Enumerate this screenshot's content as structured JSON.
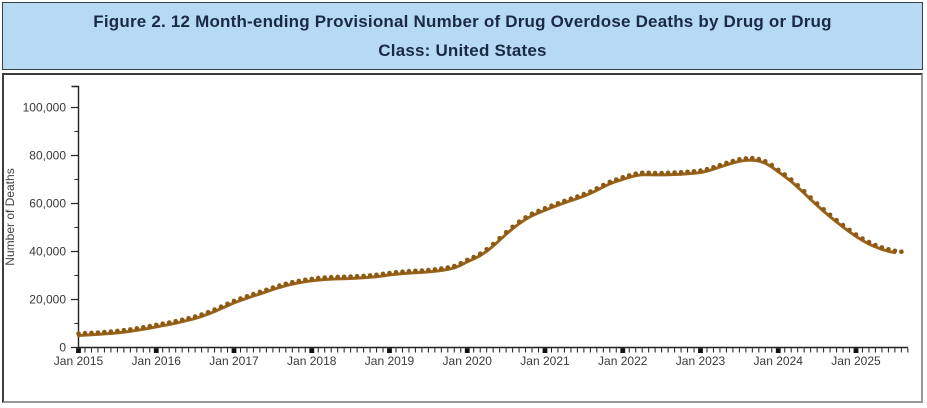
{
  "figure": {
    "title": "Figure 2. 12 Month-ending Provisional Number of Drug Overdose Deaths by Drug or Drug Class: United States"
  },
  "colors": {
    "title_bar_bg": "#b7daf4",
    "title_text": "#1b2a44",
    "series_line": "#99631a",
    "series_dot": "#8d5913",
    "axis": "#222222",
    "tick_label": "#3a3a3a"
  },
  "chart_data": {
    "type": "line",
    "title": "Figure 2. 12 Month-ending Provisional Number of Drug Overdose Deaths by Drug or Drug Class: United States",
    "xlabel": "",
    "ylabel": "Number of Deaths",
    "x_start": "Jan 2015",
    "x_end": "Aug 2025",
    "frequency": "monthly",
    "x_tick_labels": [
      "Jan 2015",
      "Jan 2016",
      "Jan 2017",
      "Jan 2018",
      "Jan 2019",
      "Jan 2020",
      "Jan 2021",
      "Jan 2022",
      "Jan 2023",
      "Jan 2024",
      "Jan 2025"
    ],
    "y_ticks": [
      0,
      20000,
      40000,
      60000,
      80000,
      100000
    ],
    "y_tick_labels": [
      "0",
      "20,000",
      "40,000",
      "60,000",
      "80,000",
      "100,000"
    ],
    "ylim": [
      0,
      108000
    ],
    "grid": false,
    "legend": "none",
    "series": [
      {
        "name": "12 month-ending number of drug overdose deaths",
        "marker": "dots-on-line",
        "color": "#99631a",
        "values": [
          5800,
          5950,
          6100,
          6250,
          6450,
          6650,
          6900,
          7200,
          7550,
          7950,
          8400,
          8900,
          9400,
          9900,
          10400,
          10950,
          11550,
          12200,
          12900,
          13750,
          14700,
          15800,
          17000,
          18200,
          19400,
          20400,
          21350,
          22250,
          23150,
          24050,
          24950,
          25800,
          26550,
          27200,
          27750,
          28200,
          28600,
          28900,
          29150,
          29300,
          29400,
          29450,
          29550,
          29700,
          29850,
          30050,
          30300,
          30650,
          31050,
          31350,
          31600,
          31800,
          31950,
          32100,
          32300,
          32550,
          32900,
          33350,
          33950,
          35100,
          36500,
          37700,
          39100,
          40900,
          43100,
          45500,
          48000,
          50300,
          52400,
          54200,
          55700,
          56900,
          58000,
          59100,
          60100,
          61100,
          62000,
          62900,
          63900,
          65000,
          66300,
          67700,
          69000,
          70000,
          70900,
          71700,
          72400,
          72800,
          72800,
          72700,
          72700,
          72800,
          72900,
          73000,
          73200,
          73400,
          73700,
          74300,
          75100,
          76000,
          76900,
          77700,
          78400,
          78800,
          78900,
          78500,
          77600,
          76000,
          74000,
          72100,
          70000,
          67600,
          65100,
          62500,
          60000,
          57600,
          55300,
          53100,
          51000,
          49000,
          47100,
          45400,
          43900,
          42700,
          41700,
          40900,
          40300,
          39900
        ]
      }
    ]
  }
}
